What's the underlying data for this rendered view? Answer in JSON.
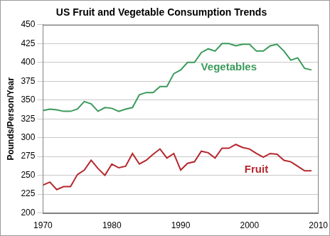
{
  "chart_data": {
    "type": "line",
    "title": "US Fruit and Vegetable Consumption Trends",
    "y_label": "Pounds/Person/Year",
    "x": [
      1970,
      1971,
      1972,
      1973,
      1974,
      1975,
      1976,
      1977,
      1978,
      1979,
      1980,
      1981,
      1982,
      1983,
      1984,
      1985,
      1986,
      1987,
      1988,
      1989,
      1990,
      1991,
      1992,
      1993,
      1994,
      1995,
      1996,
      1997,
      1998,
      1999,
      2000,
      2001,
      2002,
      2003,
      2004,
      2005,
      2006,
      2007,
      2008,
      2009
    ],
    "series": [
      {
        "name": "Vegetables",
        "color": "#3a9a5a",
        "values": [
          336,
          338,
          337,
          335,
          335,
          338,
          348,
          345,
          335,
          340,
          339,
          335,
          338,
          340,
          357,
          360,
          360,
          368,
          368,
          385,
          390,
          400,
          400,
          413,
          418,
          415,
          425,
          425,
          422,
          424,
          424,
          415,
          415,
          422,
          424,
          415,
          403,
          406,
          392,
          390
        ]
      },
      {
        "name": "Fruit",
        "color": "#b5272d",
        "values": [
          237,
          241,
          231,
          235,
          235,
          251,
          257,
          270,
          259,
          250,
          265,
          260,
          262,
          279,
          265,
          270,
          278,
          285,
          273,
          279,
          257,
          266,
          268,
          282,
          280,
          273,
          286,
          286,
          291,
          287,
          285,
          279,
          274,
          279,
          278,
          270,
          268,
          262,
          256,
          256
        ]
      }
    ],
    "annotations": [
      {
        "text": "Vegetables",
        "x": 1997,
        "y": 393,
        "color": "#3a9a5a"
      },
      {
        "text": "Fruit",
        "x": 2001,
        "y": 257,
        "color": "#b5272d"
      }
    ],
    "xlim": [
      1970,
      2010
    ],
    "xticks": [
      1970,
      1980,
      1990,
      2000,
      2010
    ],
    "ylim": [
      200,
      450
    ],
    "yticks": [
      200,
      225,
      250,
      275,
      300,
      325,
      350,
      375,
      400,
      425,
      450
    ],
    "grid": true
  }
}
